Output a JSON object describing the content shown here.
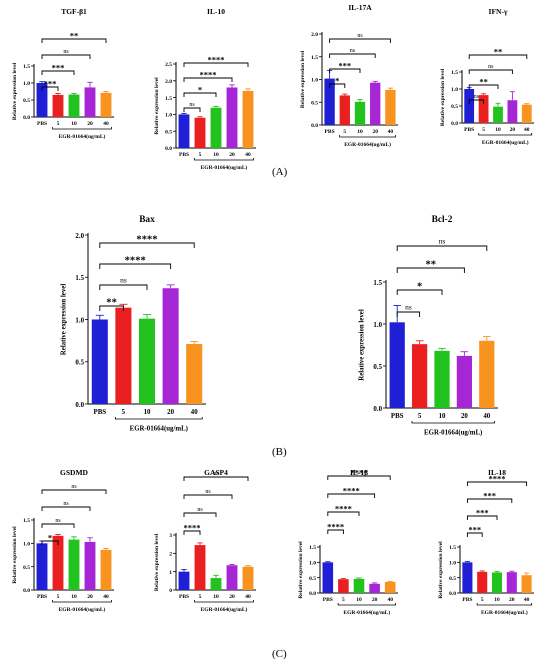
{
  "panel_labels": [
    "(A)",
    "(B)",
    "(C)"
  ],
  "colors": {
    "PBS": "#1f1fd6",
    "5": "#ea1f1f",
    "10": "#22c31f",
    "20": "#a626d6",
    "40": "#f7931e"
  },
  "chart_data": [
    {
      "type": "bar",
      "title": "TGF-β1",
      "ylabel": "Relative expression level",
      "xlabel": "EGR-01664(ug/mL)",
      "categories": [
        "PBS",
        "5",
        "10",
        "20",
        "40"
      ],
      "values": [
        1.0,
        0.65,
        0.66,
        0.87,
        0.71
      ],
      "errors": [
        0.04,
        0.04,
        0.03,
        0.15,
        0.04
      ],
      "ylim": [
        0,
        1.5
      ],
      "yticks": [
        "0.0",
        "0.5",
        "1.0",
        "1.5"
      ],
      "significance": [
        {
          "compare": [
            "PBS",
            "5"
          ],
          "label": "***"
        },
        {
          "compare": [
            "PBS",
            "10"
          ],
          "label": "***"
        },
        {
          "compare": [
            "PBS",
            "20"
          ],
          "label": "ns"
        },
        {
          "compare": [
            "PBS",
            "40"
          ],
          "label": "**"
        }
      ]
    },
    {
      "type": "bar",
      "title": "IL-10",
      "ylabel": "Relative expression level",
      "xlabel": "EGR-01664(ug/mL)",
      "categories": [
        "PBS",
        "5",
        "10",
        "20",
        "40"
      ],
      "values": [
        1.0,
        0.9,
        1.2,
        1.8,
        1.7
      ],
      "errors": [
        0.03,
        0.03,
        0.04,
        0.08,
        0.06
      ],
      "ylim": [
        0,
        2.5
      ],
      "yticks": [
        "0.0",
        "0.5",
        "1.0",
        "1.5",
        "2.0",
        "2.5"
      ],
      "significance": [
        {
          "compare": [
            "PBS",
            "5"
          ],
          "label": "ns"
        },
        {
          "compare": [
            "PBS",
            "10"
          ],
          "label": "*"
        },
        {
          "compare": [
            "PBS",
            "20"
          ],
          "label": "****"
        },
        {
          "compare": [
            "PBS",
            "40"
          ],
          "label": "****"
        }
      ]
    },
    {
      "type": "bar",
      "title": "IL-17A",
      "ylabel": "Relative expression level",
      "xlabel": "EGR-01664(ug/mL)",
      "categories": [
        "PBS",
        "5",
        "10",
        "20",
        "40"
      ],
      "values": [
        1.02,
        0.65,
        0.51,
        0.93,
        0.77
      ],
      "errors": [
        0.18,
        0.03,
        0.05,
        0.03,
        0.04
      ],
      "ylim": [
        0,
        2.0
      ],
      "yticks": [
        "0.0",
        "0.5",
        "1.0",
        "1.5",
        "2.0"
      ],
      "significance": [
        {
          "compare": [
            "PBS",
            "5"
          ],
          "label": "*"
        },
        {
          "compare": [
            "PBS",
            "10"
          ],
          "label": "***"
        },
        {
          "compare": [
            "PBS",
            "20"
          ],
          "label": "ns"
        },
        {
          "compare": [
            "PBS",
            "40"
          ],
          "label": "ns"
        }
      ]
    },
    {
      "type": "bar",
      "title": "IFN-γ",
      "ylabel": "Relative expression level",
      "xlabel": "EGR-01664(ug/mL)",
      "categories": [
        "PBS",
        "5",
        "10",
        "20",
        "40"
      ],
      "values": [
        1.0,
        0.82,
        0.48,
        0.67,
        0.54
      ],
      "errors": [
        0.04,
        0.04,
        0.1,
        0.25,
        0.03
      ],
      "ylim": [
        0,
        1.5
      ],
      "yticks": [
        "0.0",
        "0.5",
        "1.0",
        "1.5"
      ],
      "significance": [
        {
          "compare": [
            "PBS",
            "5"
          ],
          "label": "ns"
        },
        {
          "compare": [
            "PBS",
            "10"
          ],
          "label": "**"
        },
        {
          "compare": [
            "PBS",
            "20"
          ],
          "label": "ns"
        },
        {
          "compare": [
            "PBS",
            "40"
          ],
          "label": "**"
        }
      ]
    },
    {
      "type": "bar",
      "title": "Bax",
      "ylabel": "Relative expression level",
      "xlabel": "EGR-01664(ug/mL)",
      "categories": [
        "PBS",
        "5",
        "10",
        "20",
        "40"
      ],
      "values": [
        1.0,
        1.14,
        1.01,
        1.37,
        0.71
      ],
      "errors": [
        0.05,
        0.04,
        0.05,
        0.04,
        0.03
      ],
      "ylim": [
        0,
        2.0
      ],
      "yticks": [
        "0.0",
        "0.5",
        "1.0",
        "1.5",
        "2.0"
      ],
      "significance": [
        {
          "compare": [
            "PBS",
            "5"
          ],
          "label": "**"
        },
        {
          "compare": [
            "PBS",
            "10"
          ],
          "label": "ns"
        },
        {
          "compare": [
            "PBS",
            "20"
          ],
          "label": "****"
        },
        {
          "compare": [
            "PBS",
            "40"
          ],
          "label": "****"
        }
      ]
    },
    {
      "type": "bar",
      "title": "Bcl-2",
      "ylabel": "Relative expression level",
      "xlabel": "EGR-01664(ug/mL)",
      "categories": [
        "PBS",
        "5",
        "10",
        "20",
        "40"
      ],
      "values": [
        1.02,
        0.76,
        0.68,
        0.62,
        0.8
      ],
      "errors": [
        0.2,
        0.04,
        0.03,
        0.05,
        0.05
      ],
      "ylim": [
        0,
        1.5
      ],
      "yticks": [
        "0.0",
        "0.5",
        "1.0",
        "1.5"
      ],
      "significance": [
        {
          "compare": [
            "PBS",
            "5"
          ],
          "label": "ns"
        },
        {
          "compare": [
            "PBS",
            "10"
          ],
          "label": "*"
        },
        {
          "compare": [
            "PBS",
            "20"
          ],
          "label": "**"
        },
        {
          "compare": [
            "PBS",
            "40"
          ],
          "label": "ns"
        }
      ]
    },
    {
      "type": "bar",
      "title": "GSDMD",
      "ylabel": "Relative expression level",
      "xlabel": "EGR-01664(ug/mL)",
      "categories": [
        "PBS",
        "5",
        "10",
        "20",
        "40"
      ],
      "values": [
        1.0,
        1.16,
        1.08,
        1.03,
        0.86
      ],
      "errors": [
        0.05,
        0.03,
        0.06,
        0.09,
        0.03
      ],
      "ylim": [
        0,
        1.5
      ],
      "yticks": [
        "0.0",
        "0.5",
        "1.0",
        "1.5"
      ],
      "significance": [
        {
          "compare": [
            "PBS",
            "5"
          ],
          "label": "*"
        },
        {
          "compare": [
            "PBS",
            "10"
          ],
          "label": "ns"
        },
        {
          "compare": [
            "PBS",
            "20"
          ],
          "label": "ns"
        },
        {
          "compare": [
            "PBS",
            "40"
          ],
          "label": "ns"
        }
      ]
    },
    {
      "type": "bar",
      "title": "GASP4",
      "ylabel": "Relative expression level",
      "xlabel": "EGR-01664(ug/mL)",
      "categories": [
        "PBS",
        "5",
        "10",
        "20",
        "40"
      ],
      "values": [
        1.0,
        2.45,
        0.65,
        1.35,
        1.27
      ],
      "errors": [
        0.12,
        0.12,
        0.15,
        0.04,
        0.06
      ],
      "ylim": [
        0,
        3
      ],
      "yticks": [
        "0",
        "1",
        "2",
        "3"
      ],
      "significance": [
        {
          "compare": [
            "PBS",
            "5"
          ],
          "label": "****"
        },
        {
          "compare": [
            "PBS",
            "10"
          ],
          "label": "ns"
        },
        {
          "compare": [
            "PBS",
            "20"
          ],
          "label": "ns"
        },
        {
          "compare": [
            "PBS",
            "40"
          ],
          "label": "ns"
        }
      ]
    },
    {
      "type": "bar",
      "title": "IL-1β",
      "ylabel": "Relative expression level",
      "xlabel": "EGR-01664(ug/mL)",
      "categories": [
        "PBS",
        "5",
        "10",
        "20",
        "40"
      ],
      "values": [
        1.0,
        0.45,
        0.46,
        0.3,
        0.36
      ],
      "errors": [
        0.02,
        0.02,
        0.03,
        0.03,
        0.02
      ],
      "ylim": [
        0,
        1.5
      ],
      "yticks": [
        "0.0",
        "0.5",
        "1.0",
        "1.5"
      ],
      "significance": [
        {
          "compare": [
            "PBS",
            "5"
          ],
          "label": "****"
        },
        {
          "compare": [
            "PBS",
            "10"
          ],
          "label": "****"
        },
        {
          "compare": [
            "PBS",
            "20"
          ],
          "label": "****"
        },
        {
          "compare": [
            "PBS",
            "40"
          ],
          "label": "****"
        }
      ]
    },
    {
      "type": "bar",
      "title": "IL-18",
      "ylabel": "Relative expression level",
      "xlabel": "EGR-01664(ug/mL)",
      "categories": [
        "PBS",
        "5",
        "10",
        "20",
        "40"
      ],
      "values": [
        1.0,
        0.69,
        0.67,
        0.68,
        0.58
      ],
      "errors": [
        0.03,
        0.03,
        0.03,
        0.03,
        0.07
      ],
      "ylim": [
        0,
        1.5
      ],
      "yticks": [
        "0.0",
        "0.5",
        "1.0",
        "1.5"
      ],
      "significance": [
        {
          "compare": [
            "PBS",
            "5"
          ],
          "label": "***"
        },
        {
          "compare": [
            "PBS",
            "10"
          ],
          "label": "***"
        },
        {
          "compare": [
            "PBS",
            "20"
          ],
          "label": "***"
        },
        {
          "compare": [
            "PBS",
            "40"
          ],
          "label": "****"
        }
      ]
    }
  ]
}
